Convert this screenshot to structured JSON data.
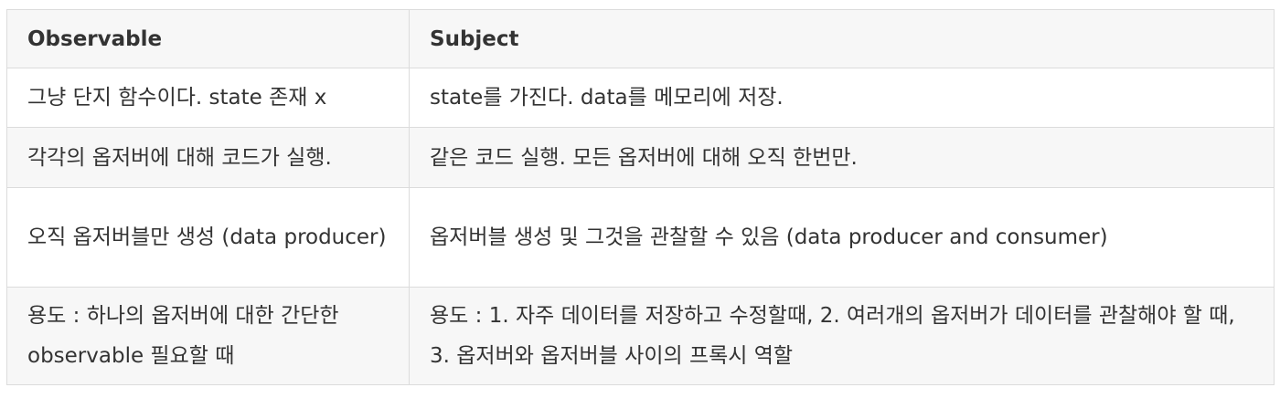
{
  "table": {
    "headers": [
      "Observable",
      "Subject"
    ],
    "rows": [
      [
        "그냥 단지 함수이다. state 존재 x",
        "state를 가진다. data를 메모리에 저장."
      ],
      [
        "각각의 옵저버에 대해 코드가 실행.",
        "같은 코드 실행. 모든 옵저버에 대해 오직 한번만."
      ],
      [
        "오직 옵저버블만 생성 (data producer)",
        "옵저버블 생성 및 그것을 관찰할 수 있음 (data producer and consumer)"
      ],
      [
        "용도 : 하나의 옵저버에 대한 간단한 observable 필요할 때",
        "용도 : 1. 자주 데이터를 저장하고 수정할때, 2. 여러개의 옵저버가 데이터를 관찰해야 할 때, 3. 옵저버와 옵저버블 사이의 프록시 역할"
      ]
    ]
  }
}
